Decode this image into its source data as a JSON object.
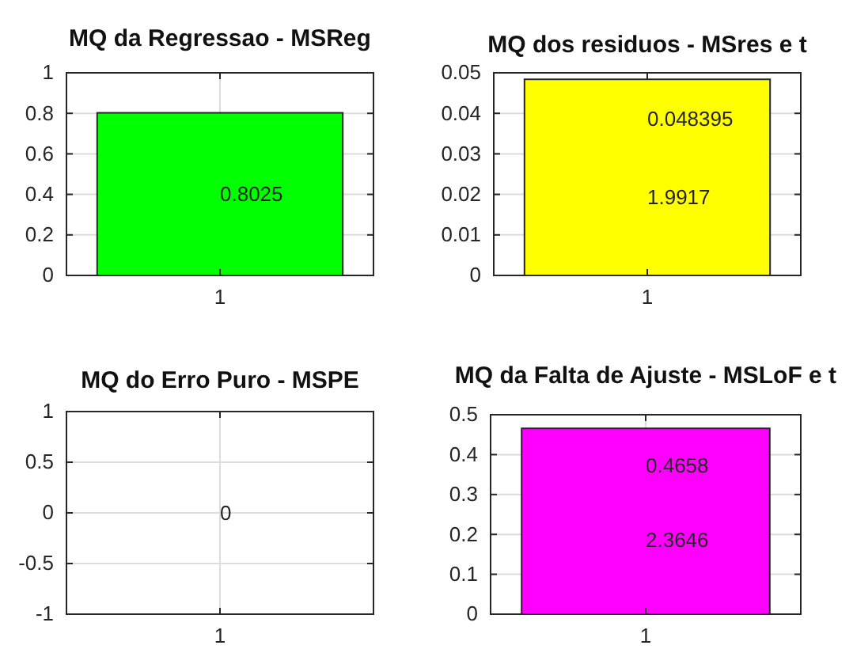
{
  "chart_data": [
    {
      "type": "bar",
      "title": "MQ da Regressao - MSReg",
      "categories": [
        "1"
      ],
      "values": [
        0.8025
      ],
      "color": "#00ff00",
      "ylim": [
        0,
        1
      ],
      "yticks": [
        0,
        0.2,
        0.4,
        0.6,
        0.8,
        1
      ],
      "grid": true,
      "data_labels": true
    },
    {
      "type": "bar",
      "title": "MQ dos residuos - MSres e t",
      "categories": [
        "1"
      ],
      "values": [
        0.048395
      ],
      "color": "#ffff00",
      "ylim": [
        0,
        0.05
      ],
      "yticks": [
        0,
        0.01,
        0.02,
        0.03,
        0.04,
        0.05
      ],
      "grid": true,
      "data_labels": true,
      "annotations": [
        "1.9917"
      ]
    },
    {
      "type": "bar",
      "title": "MQ do Erro Puro - MSPE",
      "categories": [
        "1"
      ],
      "values": [
        0
      ],
      "ylim": [
        -1,
        1
      ],
      "yticks": [
        -1,
        -0.5,
        0,
        0.5,
        1
      ],
      "grid": true,
      "data_labels": true
    },
    {
      "type": "bar",
      "title": "MQ da Falta de Ajuste - MSLoF e t",
      "categories": [
        "1"
      ],
      "values": [
        0.4658
      ],
      "color": "#ff00ff",
      "ylim": [
        0,
        0.5
      ],
      "yticks": [
        0,
        0.1,
        0.2,
        0.3,
        0.4,
        0.5
      ],
      "grid": true,
      "data_labels": true,
      "annotations": [
        "2.3646"
      ]
    }
  ]
}
